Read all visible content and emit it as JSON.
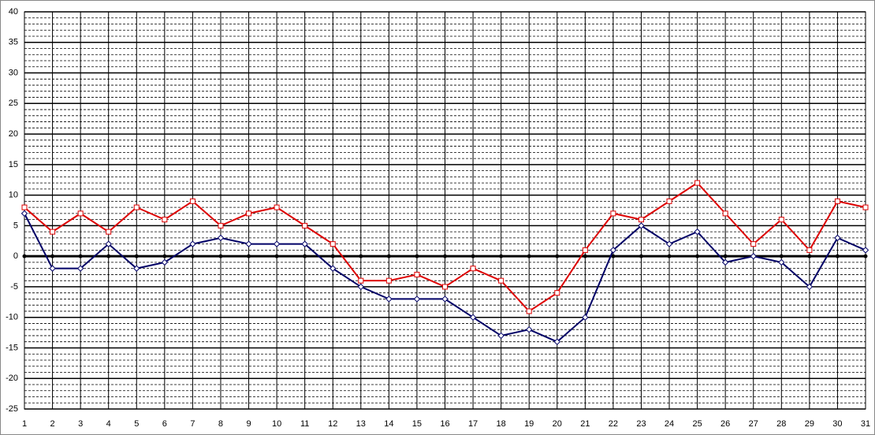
{
  "chart_data": {
    "type": "line",
    "categories": [
      "1",
      "2",
      "3",
      "4",
      "5",
      "6",
      "7",
      "8",
      "9",
      "10",
      "11",
      "12",
      "13",
      "14",
      "15",
      "16",
      "17",
      "18",
      "19",
      "20",
      "21",
      "22",
      "23",
      "24",
      "25",
      "26",
      "27",
      "28",
      "29",
      "30",
      "31"
    ],
    "series": [
      {
        "color": "#dd0000",
        "values": [
          8,
          4,
          7,
          4,
          8,
          6,
          9,
          5,
          7,
          8,
          5,
          2,
          -4,
          -4,
          -3,
          -5,
          -2,
          -4,
          -9,
          -6,
          1,
          7,
          6,
          9,
          12,
          7,
          2,
          6,
          1,
          9,
          8
        ]
      },
      {
        "color": "#000066",
        "values": [
          7,
          -2,
          -2,
          2,
          -2,
          -1,
          2,
          3,
          2,
          2,
          2,
          -2,
          -5,
          -7,
          -7,
          -7,
          -10,
          -13,
          -12,
          -14,
          -10,
          1,
          5,
          2,
          4,
          -1,
          0,
          -1,
          -5,
          3,
          1
        ]
      }
    ],
    "ylim": [
      -25,
      40
    ],
    "yticks": [
      -25,
      -20,
      -15,
      -10,
      -5,
      0,
      5,
      10,
      15,
      20,
      25,
      30,
      35,
      40
    ],
    "grid": true
  }
}
